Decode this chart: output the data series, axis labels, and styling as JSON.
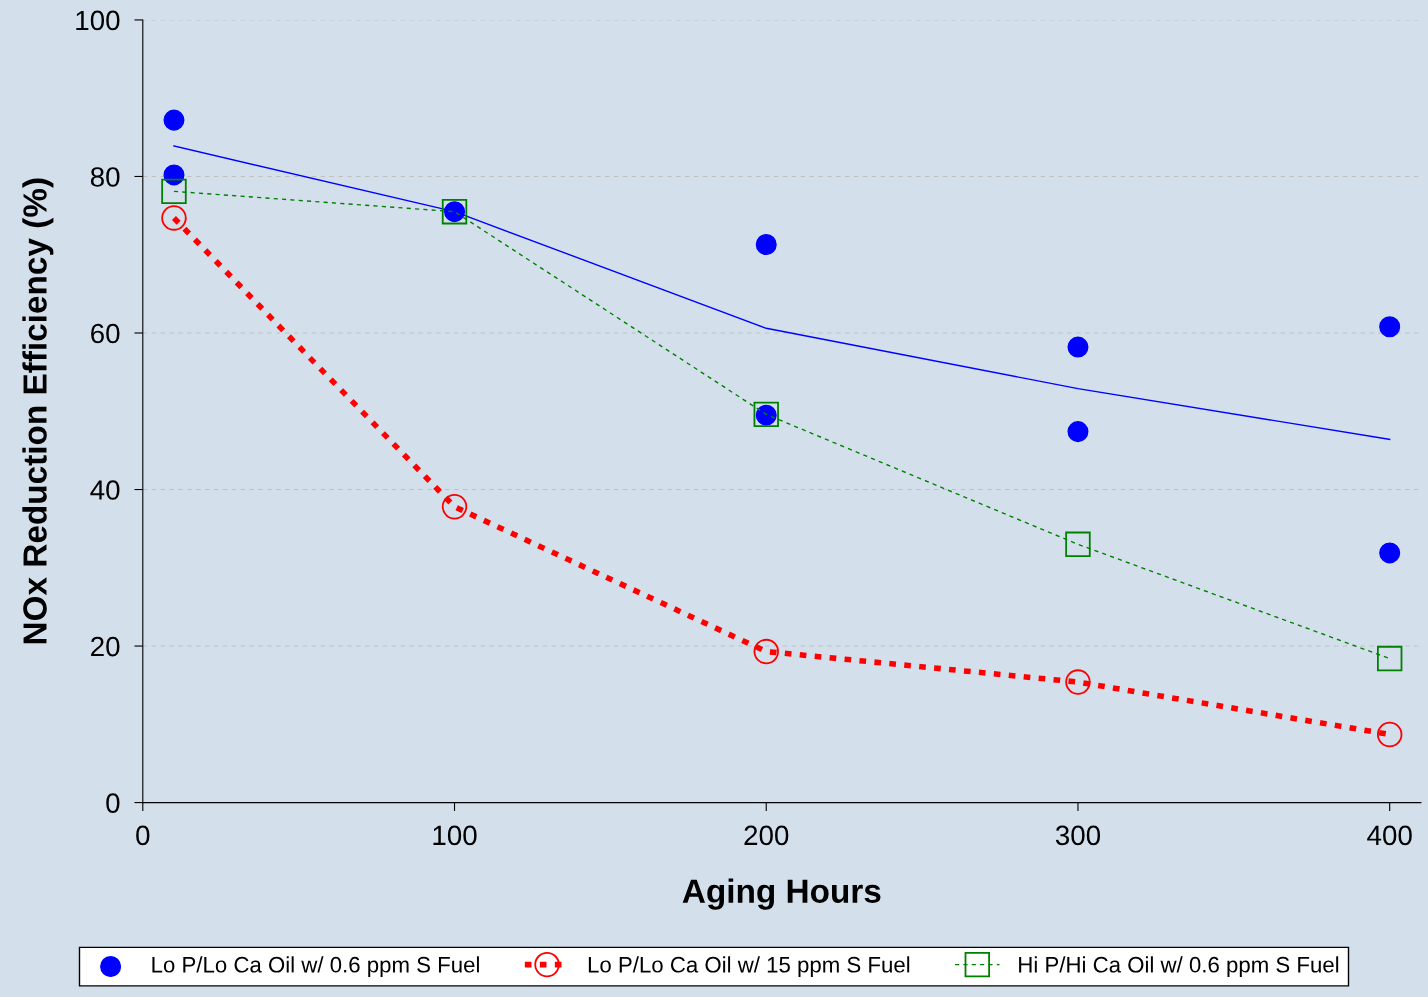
{
  "chart_data": {
    "type": "line",
    "xlabel": "Aging Hours",
    "ylabel": "NOx Reduction Efficiency (%)",
    "xlim": [
      0,
      410
    ],
    "xticks": [
      0,
      100,
      200,
      300,
      400
    ],
    "ylim": [
      0,
      100
    ],
    "yticks": [
      0,
      20,
      40,
      60,
      80,
      100
    ],
    "grid": "y",
    "legend": "bottom",
    "series": [
      {
        "name": "Lo P/Lo Ca Oil w/ 0.6 ppm S Fuel",
        "type": "scatter",
        "color": "#0000ff",
        "marker": "circle",
        "x": [
          10,
          10,
          100,
          200,
          200,
          300,
          300,
          400,
          400
        ],
        "values": [
          87.2,
          80.2,
          75.5,
          71.3,
          49.5,
          58.2,
          47.4,
          60.8,
          31.9
        ]
      },
      {
        "color": "#0000ff",
        "line_style": "solid",
        "marker": "none",
        "x": [
          10,
          100,
          200,
          300,
          400
        ],
        "values": [
          83.9,
          75.5,
          60.6,
          52.9,
          46.4
        ]
      },
      {
        "name": "Lo P/Lo Ca Oil w/ 15 ppm S Fuel",
        "color": "#ff0000",
        "line_style": "dashed",
        "marker": "circle",
        "x": [
          10,
          100,
          200,
          300,
          400
        ],
        "values": [
          74.7,
          37.8,
          19.3,
          15.4,
          8.7
        ]
      },
      {
        "name": "Hi P/Hi Ca Oil w/ 0.6 ppm S Fuel",
        "color": "#008000",
        "line_style": "dashed",
        "marker": "square",
        "x": [
          10,
          100,
          200,
          300,
          400
        ],
        "values": [
          78.1,
          75.5,
          49.6,
          33.0,
          18.4
        ]
      }
    ]
  }
}
